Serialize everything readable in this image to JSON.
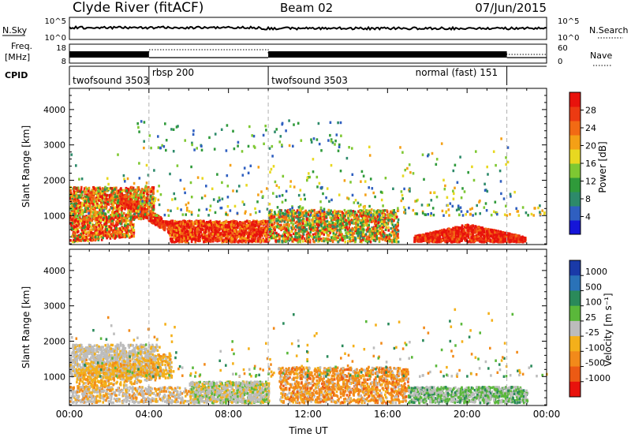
{
  "header": {
    "station": "Clyde River (fitACF)",
    "beam": "Beam 02",
    "date": "07/Jun/2015"
  },
  "strip_panels": {
    "nsky": {
      "left_label": "N.Sky",
      "left_ticks": [
        "10^5",
        "10^0"
      ],
      "right_label": "N.Search",
      "right_ticks": [
        "10^5",
        "10^0"
      ]
    },
    "freq": {
      "left_label_1": "Freq.",
      "left_label_2": "[MHz]",
      "left_ticks": [
        "18",
        "8"
      ],
      "right_label": "Nave",
      "right_ticks": [
        "60",
        "0"
      ]
    },
    "cpid": {
      "label": "CPID",
      "segments": [
        {
          "start_hour": 0,
          "end_hour": 4,
          "label": "twofsound 3503"
        },
        {
          "start_hour": 4,
          "end_hour": 10,
          "label": "rbsp 200"
        },
        {
          "start_hour": 10,
          "end_hour": 22,
          "label": "twofsound 3503"
        },
        {
          "start_hour": 16,
          "end_hour": 22,
          "label": "normal (fast) 151"
        }
      ]
    }
  },
  "chart_data": [
    {
      "type": "heatmap",
      "name": "power",
      "ylabel": "Slant Range [km]",
      "yticks": [
        "1000",
        "2000",
        "3000",
        "4000"
      ],
      "ylim": [
        180,
        4600
      ],
      "xlim_hours": [
        0,
        24
      ],
      "colorbar": {
        "label": "Power [dB]",
        "ticks": [
          "4",
          "8",
          "12",
          "16",
          "20",
          "24",
          "28"
        ],
        "range": [
          0,
          32
        ],
        "colors": [
          "#1515d8",
          "#2f5fc0",
          "#2d8a6a",
          "#2f9a3a",
          "#7ec832",
          "#e8d820",
          "#f4a016",
          "#f26a14",
          "#ec3a12",
          "#e8120c"
        ]
      }
    },
    {
      "type": "heatmap",
      "name": "velocity",
      "ylabel": "Slant Range [km]",
      "yticks": [
        "1000",
        "2000",
        "3000",
        "4000"
      ],
      "ylim": [
        180,
        4600
      ],
      "xlim_hours": [
        0,
        24
      ],
      "xlabel": "Time UT",
      "xticks": [
        "00:00",
        "04:00",
        "08:00",
        "12:00",
        "16:00",
        "20:00",
        "00:00"
      ],
      "colorbar": {
        "label": "Velocity [m s⁻¹]",
        "ticks": [
          "1000",
          "500",
          "100",
          "25",
          "-25",
          "-100",
          "-500",
          "-1000"
        ],
        "colors": [
          "#1a3aa8",
          "#2a72b8",
          "#2a8a5a",
          "#5ab83a",
          "#bcbcbc",
          "#f4b01a",
          "#f28a1a",
          "#ec5a14",
          "#e8120c"
        ]
      }
    }
  ]
}
